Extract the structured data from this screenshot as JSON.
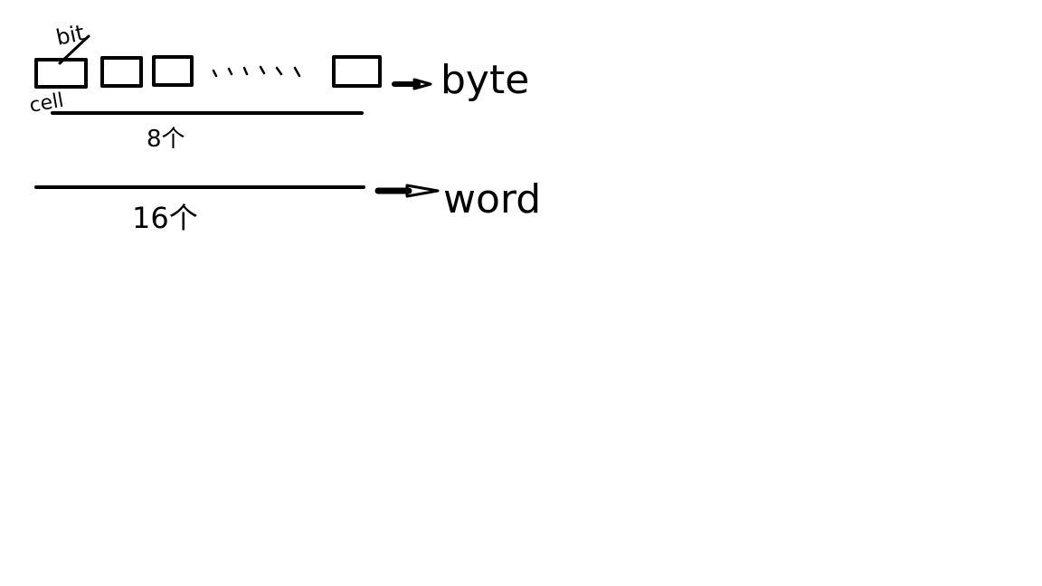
{
  "labels": {
    "bit": "bit",
    "cell": "cell",
    "byte": "byte",
    "byte_count": "8个",
    "word": "word",
    "word_count": "16个"
  },
  "colors": {
    "ink": "#000000",
    "paper": "#ffffff"
  }
}
